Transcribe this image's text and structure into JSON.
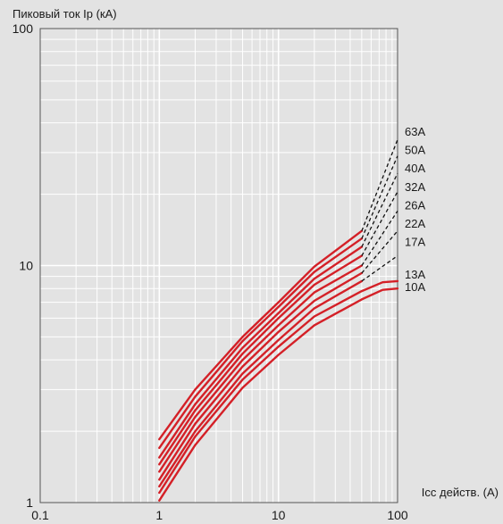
{
  "chart_data": {
    "type": "line",
    "title": "",
    "ylabel": "Пиковый ток Ip (кА)",
    "xlabel": "Icc действ. (A)",
    "x_scale": "log",
    "y_scale": "log",
    "xlim": [
      0.1,
      100
    ],
    "ylim": [
      1,
      100
    ],
    "x_ticks": [
      "0.1",
      "1",
      "10",
      "100"
    ],
    "y_ticks": [
      "1",
      "10",
      "100"
    ],
    "grid": true,
    "colors": {
      "solid": "#d42027",
      "dashed": "#111111",
      "grid": "#ffffff",
      "frame": "#555555",
      "background": "#e3e3e3"
    },
    "series": [
      {
        "name": "63A",
        "x": [
          1,
          2,
          5,
          10,
          20,
          50
        ],
        "y": [
          1.85,
          3.0,
          5.0,
          7.0,
          9.9,
          14.0
        ],
        "dashed_x": [
          50,
          100
        ],
        "dashed_y": [
          14.0,
          34.0
        ]
      },
      {
        "name": "50A",
        "x": [
          1,
          2,
          5,
          10,
          20,
          50
        ],
        "y": [
          1.7,
          2.8,
          4.8,
          6.7,
          9.4,
          13.0
        ],
        "dashed_x": [
          50,
          100
        ],
        "dashed_y": [
          13.0,
          29.0
        ]
      },
      {
        "name": "40A",
        "x": [
          1,
          2,
          5,
          10,
          20,
          50
        ],
        "y": [
          1.55,
          2.6,
          4.5,
          6.3,
          8.8,
          12.0
        ],
        "dashed_x": [
          50,
          100
        ],
        "dashed_y": [
          12.0,
          24.5
        ]
      },
      {
        "name": "32A",
        "x": [
          1,
          2,
          5,
          10,
          20,
          50
        ],
        "y": [
          1.45,
          2.45,
          4.25,
          6.0,
          8.3,
          11.0
        ],
        "dashed_x": [
          50,
          100
        ],
        "dashed_y": [
          11.0,
          20.5
        ]
      },
      {
        "name": "26A",
        "x": [
          1,
          2,
          5,
          10,
          20,
          50
        ],
        "y": [
          1.35,
          2.3,
          4.0,
          5.6,
          7.7,
          10.0
        ],
        "dashed_x": [
          50,
          100
        ],
        "dashed_y": [
          10.0,
          17.0
        ]
      },
      {
        "name": "22A",
        "x": [
          1,
          2,
          5,
          10,
          20,
          50
        ],
        "y": [
          1.25,
          2.15,
          3.75,
          5.25,
          7.1,
          9.3
        ],
        "dashed_x": [
          50,
          100
        ],
        "dashed_y": [
          9.3,
          14.0
        ]
      },
      {
        "name": "17A",
        "x": [
          1,
          2,
          5,
          10,
          20,
          50
        ],
        "y": [
          1.17,
          2.0,
          3.5,
          4.85,
          6.6,
          8.6
        ],
        "dashed_x": [
          50,
          100
        ],
        "dashed_y": [
          8.6,
          11.0
        ]
      },
      {
        "name": "13A",
        "x": [
          1,
          2,
          5,
          10,
          20,
          50,
          75,
          100
        ],
        "y": [
          1.1,
          1.9,
          3.3,
          4.55,
          6.1,
          7.8,
          8.5,
          8.6
        ],
        "dashed_x": [],
        "dashed_y": []
      },
      {
        "name": "10A",
        "x": [
          1,
          2,
          5,
          10,
          20,
          50,
          75,
          100
        ],
        "y": [
          1.02,
          1.75,
          3.05,
          4.2,
          5.6,
          7.2,
          7.9,
          8.0
        ],
        "dashed_x": [],
        "dashed_y": []
      }
    ]
  }
}
